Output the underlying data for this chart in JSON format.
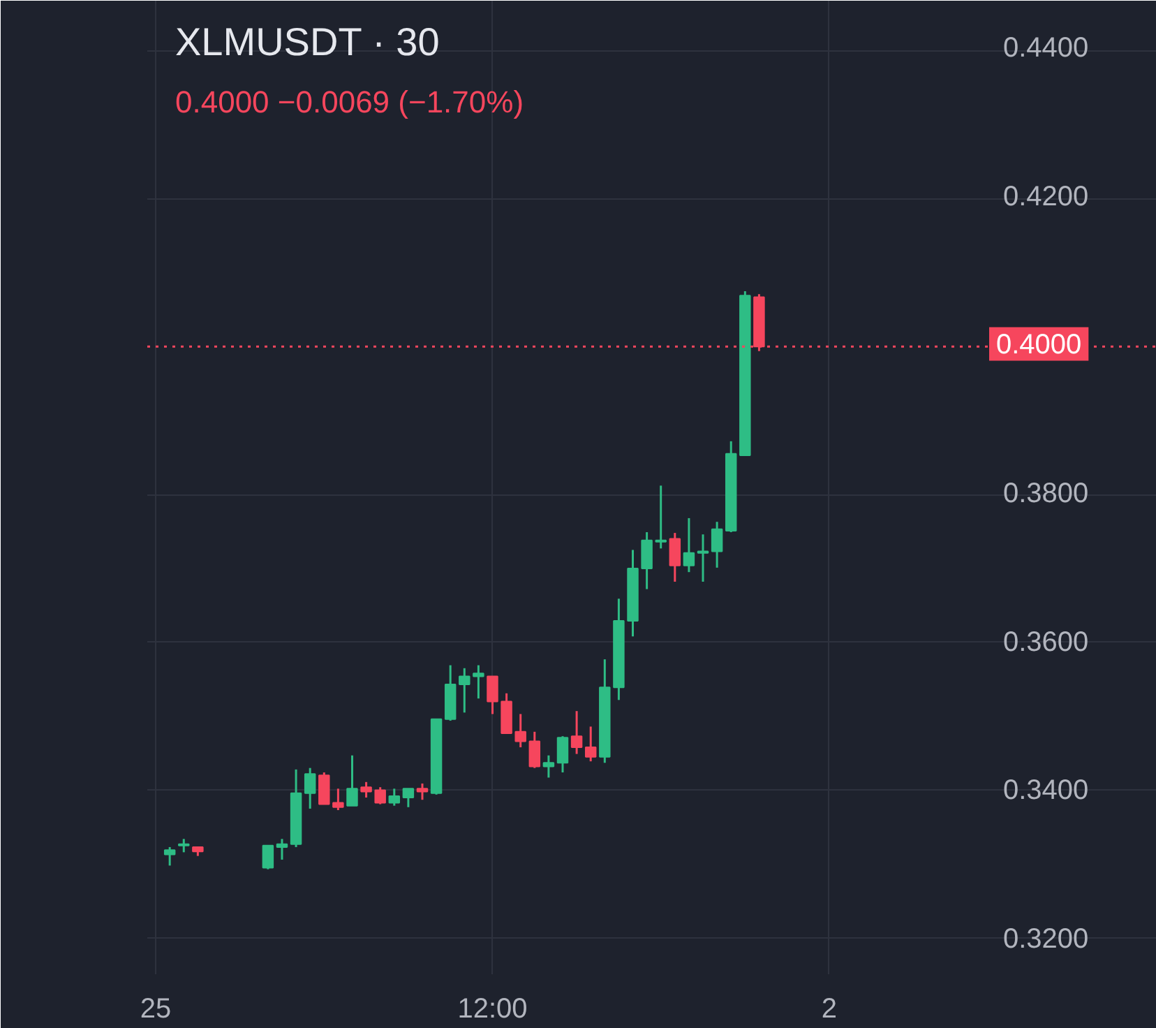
{
  "chart_data": {
    "type": "candlestick",
    "title": "XLMUSDT · 30",
    "subtitle": "0.4000  −0.0069 (−1.70%)",
    "categories": [
      "25",
      null,
      null,
      null,
      null,
      null,
      null,
      null,
      null,
      null,
      null,
      null,
      null,
      null,
      null,
      null,
      null,
      null,
      null,
      null,
      null,
      null,
      null,
      null,
      "12:00",
      null,
      null,
      null,
      null,
      null,
      null,
      null,
      null,
      null,
      null,
      null,
      null,
      null,
      null,
      null,
      null,
      null,
      null,
      null,
      null,
      null,
      null,
      null,
      "2",
      null,
      null,
      null,
      null,
      null,
      null,
      null,
      null,
      null,
      null
    ],
    "ohlc": [
      null,
      [
        0.3313,
        0.3323,
        0.3298,
        0.3319
      ],
      [
        0.3325,
        0.3334,
        0.3316,
        0.3327
      ],
      [
        0.3323,
        0.3323,
        0.3311,
        0.3317
      ],
      null,
      null,
      null,
      null,
      [
        0.3295,
        0.3325,
        0.3293,
        0.3325
      ],
      [
        0.3323,
        0.3334,
        0.3306,
        0.3327
      ],
      [
        0.3327,
        0.3428,
        0.3323,
        0.3396
      ],
      [
        0.3396,
        0.343,
        0.3375,
        0.3422
      ],
      [
        0.342,
        0.3424,
        0.3381,
        0.3381
      ],
      [
        0.3383,
        0.3402,
        0.3373,
        0.3377
      ],
      [
        0.3379,
        0.3447,
        0.3379,
        0.3402
      ],
      [
        0.3404,
        0.3411,
        0.339,
        0.3398
      ],
      [
        0.34,
        0.3404,
        0.3381,
        0.3383
      ],
      [
        0.3383,
        0.3402,
        0.3379,
        0.3392
      ],
      [
        0.339,
        0.3402,
        0.3377,
        0.3402
      ],
      [
        0.3402,
        0.3409,
        0.3387,
        0.3398
      ],
      [
        0.3396,
        0.3496,
        0.3394,
        0.3496
      ],
      [
        0.3496,
        0.3569,
        0.3494,
        0.3543
      ],
      [
        0.3543,
        0.3565,
        0.3505,
        0.3554
      ],
      [
        0.3554,
        0.3569,
        0.3524,
        0.3558
      ],
      [
        0.3554,
        0.3554,
        0.3503,
        0.352
      ],
      [
        0.352,
        0.3531,
        0.3477,
        0.3477
      ],
      [
        0.3479,
        0.3503,
        0.3458,
        0.3466
      ],
      [
        0.3466,
        0.3479,
        0.343,
        0.3432
      ],
      [
        0.3432,
        0.3447,
        0.3417,
        0.3437
      ],
      [
        0.3437,
        0.3473,
        0.3424,
        0.3471
      ],
      [
        0.3473,
        0.3507,
        0.3449,
        0.3458
      ],
      [
        0.3458,
        0.3486,
        0.3439,
        0.3445
      ],
      [
        0.3445,
        0.3577,
        0.3437,
        0.3539
      ],
      [
        0.3539,
        0.3659,
        0.3522,
        0.3629
      ],
      [
        0.3629,
        0.3725,
        0.3608,
        0.37
      ],
      [
        0.37,
        0.3749,
        0.3672,
        0.3738
      ],
      [
        0.3736,
        0.3812,
        0.3727,
        0.3738
      ],
      [
        0.374,
        0.3748,
        0.3682,
        0.3704
      ],
      [
        0.3704,
        0.3768,
        0.3695,
        0.3721
      ],
      [
        0.3721,
        0.3746,
        0.3682,
        0.3723
      ],
      [
        0.3723,
        0.3763,
        0.3701,
        0.3753
      ],
      [
        0.3751,
        0.3872,
        0.3749,
        0.3855
      ],
      [
        0.3853,
        0.4075,
        0.3853,
        0.4069
      ],
      [
        0.4067,
        0.4071,
        0.3994,
        0.4
      ],
      null,
      null,
      null,
      null,
      null,
      null,
      null,
      null,
      null,
      null,
      null,
      null,
      null,
      null,
      null
    ],
    "colors": [
      null,
      "#2ebd85",
      "#2ebd85",
      "#f6465d",
      null,
      null,
      null,
      null,
      "#2ebd85",
      "#2ebd85",
      "#2ebd85",
      "#2ebd85",
      "#f6465d",
      "#f6465d",
      "#2ebd85",
      "#f6465d",
      "#f6465d",
      "#2ebd85",
      "#2ebd85",
      "#f6465d",
      "#2ebd85",
      "#2ebd85",
      "#2ebd85",
      "#2ebd85",
      "#f6465d",
      "#f6465d",
      "#f6465d",
      "#f6465d",
      "#2ebd85",
      "#2ebd85",
      "#f6465d",
      "#f6465d",
      "#2ebd85",
      "#2ebd85",
      "#2ebd85",
      "#2ebd85",
      "#2ebd85",
      "#f6465d",
      "#2ebd85",
      "#2ebd85",
      "#2ebd85",
      "#2ebd85",
      "#2ebd85",
      "#f6465d",
      null,
      null,
      null,
      null,
      null,
      null,
      null,
      null,
      null,
      null,
      null,
      null,
      null,
      null,
      null
    ],
    "ylim": [
      0.3151,
      0.4468
    ],
    "yticks": [
      {
        "value": 0.32,
        "label": "0.3200"
      },
      {
        "value": 0.34,
        "label": "0.3400"
      },
      {
        "value": 0.36,
        "label": "0.3600"
      },
      {
        "value": 0.38,
        "label": "0.3800"
      },
      {
        "value": 0.42,
        "label": "0.4200"
      },
      {
        "value": 0.44,
        "label": "0.4400"
      }
    ],
    "ref_lines": [
      {
        "axis": "y",
        "value": 0.4,
        "label": "0.4000",
        "color": "#f6465d",
        "line_style": "dotted"
      }
    ],
    "grid": true
  }
}
